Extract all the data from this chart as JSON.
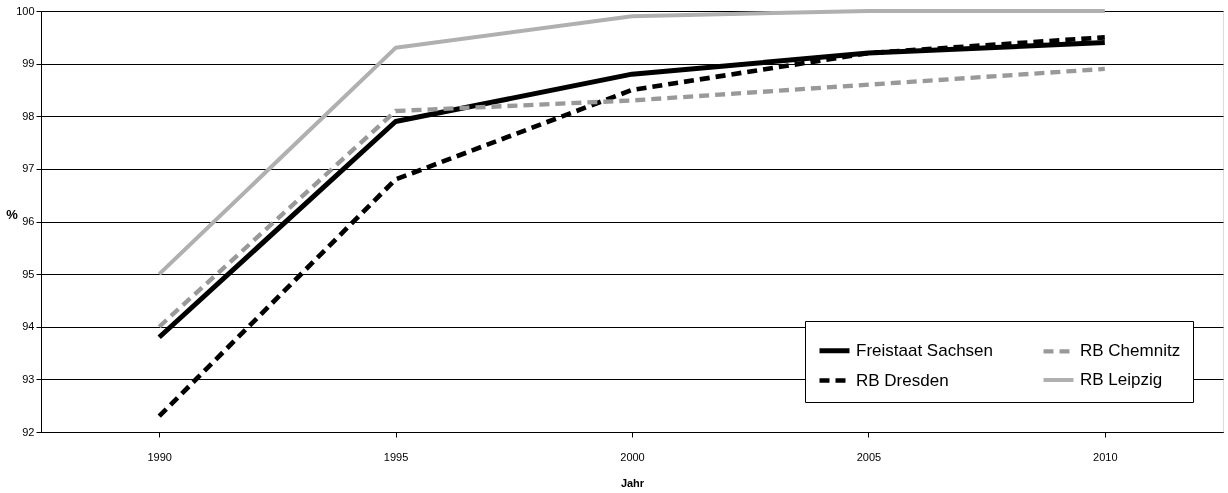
{
  "chart_data": {
    "type": "line",
    "xlabel": "Jahr",
    "ylabel": "%",
    "categories": [
      "1990",
      "1995",
      "2000",
      "2005",
      "2010"
    ],
    "series": [
      {
        "name": "Freistaat Sachsen",
        "color": "#000000",
        "line_style": "solid",
        "values": [
          93.8,
          97.9,
          98.8,
          99.2,
          99.4
        ]
      },
      {
        "name": "RB Dresden",
        "color": "#000000",
        "line_style": "dashed",
        "values": [
          92.3,
          96.8,
          98.5,
          99.2,
          99.5
        ]
      },
      {
        "name": "RB Chemnitz",
        "color": "#999999",
        "line_style": "dashed",
        "values": [
          94.0,
          98.1,
          98.3,
          98.6,
          98.9
        ]
      },
      {
        "name": "RB Leipzig",
        "color": "#b0b0b0",
        "line_style": "solid",
        "values": [
          95.0,
          99.3,
          99.9,
          100,
          100
        ]
      }
    ],
    "ylim": [
      92,
      100
    ],
    "yticks": [
      92,
      93,
      94,
      95,
      96,
      97,
      98,
      99,
      100
    ],
    "grid": "y",
    "legend": "bottom right",
    "marker": "none"
  }
}
